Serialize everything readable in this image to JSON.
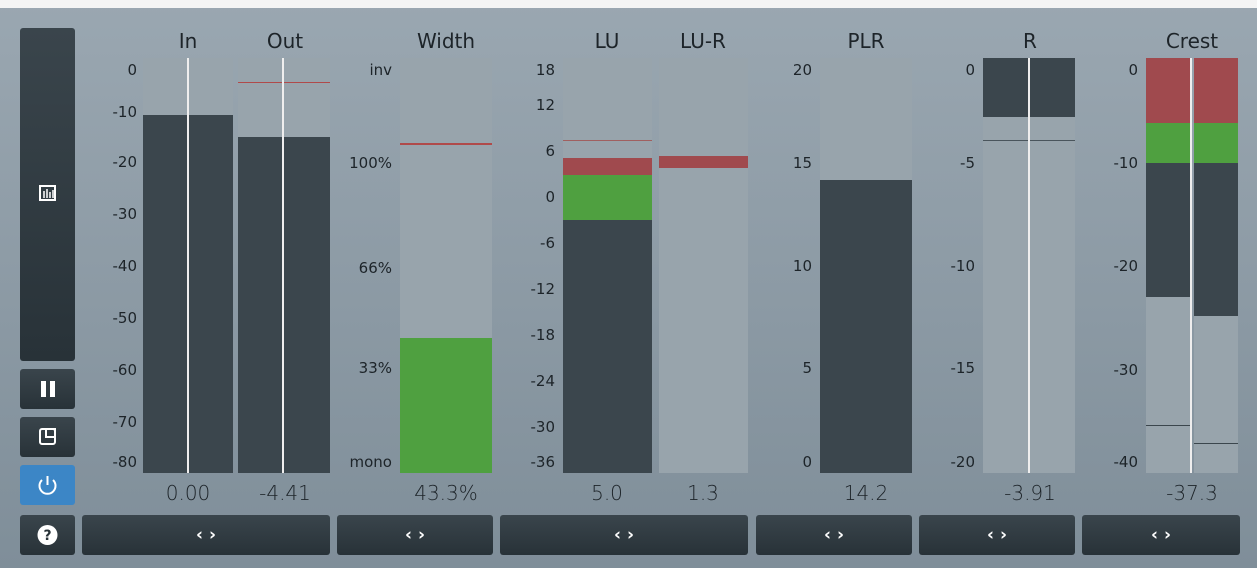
{
  "meters": [
    {
      "titles": [
        "In",
        "Out"
      ],
      "scale": [
        "0",
        "-10",
        "-20",
        "-30",
        "-40",
        "-50",
        "-60",
        "-70",
        "-80"
      ],
      "readouts": [
        "0.00",
        "-4.41"
      ]
    },
    {
      "titles": [
        "Width"
      ],
      "scale": [
        "inv",
        "100%",
        "66%",
        "33%",
        "mono"
      ],
      "readouts": [
        "43.3%"
      ]
    },
    {
      "titles": [
        "LU",
        "LU-R"
      ],
      "scale": [
        "18",
        "12",
        "6",
        "0",
        "-6",
        "-12",
        "-18",
        "-24",
        "-30",
        "-36"
      ],
      "readouts": [
        "5.0",
        "1.3"
      ]
    },
    {
      "titles": [
        "PLR"
      ],
      "scale": [
        "20",
        "15",
        "10",
        "5",
        "0"
      ],
      "readouts": [
        "14.2"
      ]
    },
    {
      "titles": [
        "R"
      ],
      "scale": [
        "0",
        "-5",
        "-10",
        "-15",
        "-20"
      ],
      "readouts": [
        "-3.91"
      ]
    },
    {
      "titles": [
        "Crest"
      ],
      "scale": [
        "0",
        "-10",
        "-20",
        "-30",
        "-40"
      ],
      "readouts": [
        "-37.3"
      ]
    }
  ],
  "nav_buttons": [
    "‹ ›",
    "‹ ›",
    "‹ ›",
    "‹ ›",
    "‹ ›",
    "‹ ›"
  ]
}
